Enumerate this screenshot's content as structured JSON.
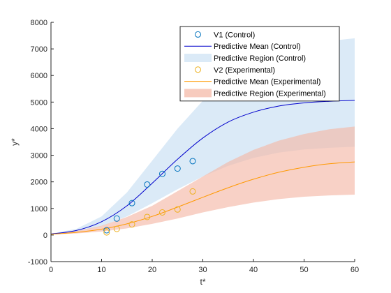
{
  "chart_data": {
    "type": "line",
    "xlabel": "t*",
    "ylabel": "y*",
    "xlim": [
      0,
      60
    ],
    "ylim": [
      -1000,
      8000
    ],
    "xticks": [
      0,
      10,
      20,
      30,
      40,
      50,
      60
    ],
    "yticks": [
      -1000,
      0,
      1000,
      2000,
      3000,
      4000,
      5000,
      6000,
      7000,
      8000
    ],
    "grid": false,
    "legend_position": "top-right",
    "colors": {
      "control": "#0000cc",
      "control_points": "#0072bd",
      "control_band": "#dbeaf7",
      "experimental": "#ff9900",
      "experimental_points": "#edb120",
      "experimental_band": "#f4b9a8"
    },
    "series": [
      {
        "name": "V1 (Control)",
        "kind": "scatter",
        "x": [
          11,
          13,
          16,
          19,
          22,
          25,
          28
        ],
        "y": [
          180,
          620,
          1200,
          1900,
          2300,
          2500,
          2780
        ]
      },
      {
        "name": "Predictive Mean (Control)",
        "kind": "line",
        "x": [
          0,
          5,
          10,
          15,
          20,
          25,
          30,
          35,
          40,
          45,
          50,
          55,
          60
        ],
        "y": [
          40,
          170,
          500,
          1100,
          1950,
          2850,
          3650,
          4250,
          4620,
          4850,
          4970,
          5030,
          5070
        ]
      },
      {
        "name": "Predictive Region (Control)",
        "kind": "band",
        "x": [
          0,
          5,
          10,
          15,
          20,
          25,
          30,
          35,
          40,
          45,
          50,
          55,
          60
        ],
        "upper": [
          50,
          230,
          700,
          1600,
          2800,
          4000,
          5050,
          5900,
          6500,
          6900,
          7150,
          7300,
          7400
        ],
        "lower": [
          30,
          120,
          330,
          700,
          1200,
          1720,
          2200,
          2600,
          2900,
          3100,
          3220,
          3280,
          3320
        ]
      },
      {
        "name": "V2 (Experimental)",
        "kind": "scatter",
        "x": [
          11,
          13,
          16,
          19,
          22,
          25,
          28
        ],
        "y": [
          100,
          230,
          400,
          680,
          850,
          960,
          1640
        ]
      },
      {
        "name": "Predictive Mean (Experimental)",
        "kind": "line",
        "x": [
          0,
          5,
          10,
          15,
          20,
          25,
          30,
          35,
          40,
          45,
          50,
          55,
          60
        ],
        "y": [
          30,
          100,
          220,
          420,
          700,
          1050,
          1420,
          1780,
          2100,
          2360,
          2550,
          2680,
          2750
        ]
      },
      {
        "name": "Predictive Region (Experimental)",
        "kind": "band",
        "x": [
          0,
          5,
          10,
          15,
          20,
          25,
          30,
          35,
          40,
          45,
          50,
          55,
          60
        ],
        "upper": [
          40,
          150,
          350,
          680,
          1100,
          1650,
          2200,
          2750,
          3200,
          3550,
          3800,
          3980,
          4080
        ],
        "lower": [
          20,
          60,
          130,
          250,
          420,
          620,
          850,
          1050,
          1220,
          1350,
          1440,
          1490,
          1520
        ]
      }
    ]
  }
}
